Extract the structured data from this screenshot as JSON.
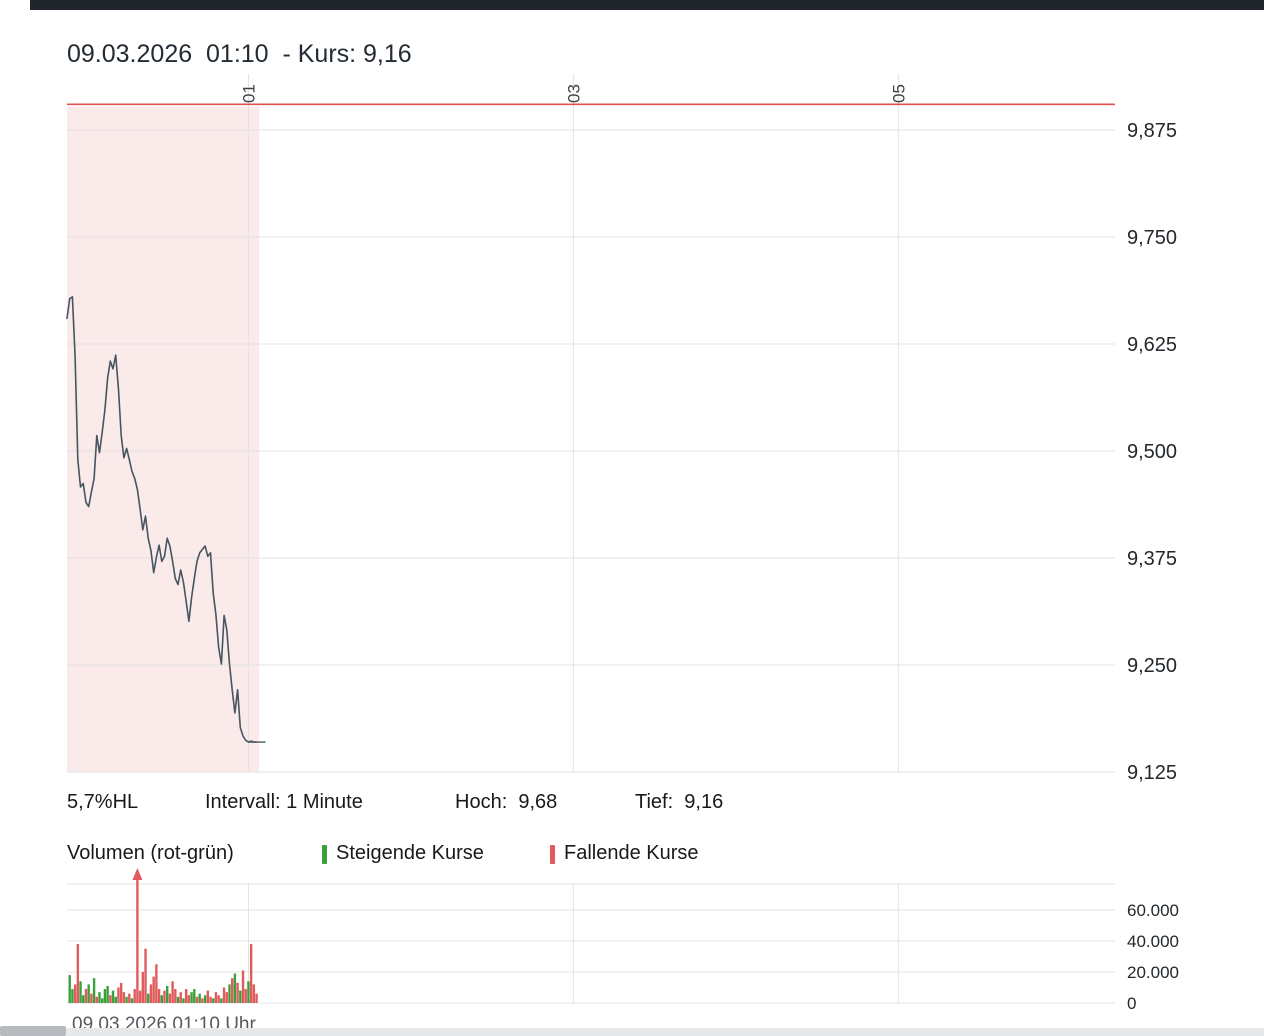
{
  "header": {
    "title": "09.03.2026  01:10  - Kurs: 9,16"
  },
  "stats": {
    "range_pct": "5,7%HL",
    "interval": "Intervall: 1 Minute",
    "high": "Hoch:  9,68",
    "low": "Tief:  9,16"
  },
  "legend": {
    "volume_label": "Volumen (rot-grün)",
    "up_label": "Steigende Kurse",
    "down_label": "Fallende Kurse",
    "up_color": "#3aa03a",
    "down_color": "#e15b5e"
  },
  "footer": {
    "axis_label": "09.03.2026 01:10 Uhr"
  },
  "chart_data": {
    "type": "line",
    "title": "09.03.2026  01:10  - Kurs: 9,16",
    "interval": "1 Minute",
    "high": 9.68,
    "low": 9.16,
    "last": 9.16,
    "y_axis_side": "right",
    "ylim": [
      9.125,
      9.943
    ],
    "grid": true,
    "y_ticks": [
      {
        "label": "9,875",
        "value": 9.875
      },
      {
        "label": "9,750",
        "value": 9.75
      },
      {
        "label": "9,625",
        "value": 9.625
      },
      {
        "label": "9,500",
        "value": 9.5
      },
      {
        "label": "9,375",
        "value": 9.375
      },
      {
        "label": "9,250",
        "value": 9.25
      },
      {
        "label": "9,125",
        "value": 9.125
      }
    ],
    "x_ticks": [
      {
        "label": "01",
        "min": 67
      },
      {
        "label": "03",
        "min": 187
      },
      {
        "label": "05",
        "min": 307
      }
    ],
    "reference_line": {
      "value": 9.905,
      "color": "#e14f4f"
    },
    "shaded_region": {
      "from_min": 0,
      "to_min": 71,
      "color": "rgba(214,80,80,0.12)"
    },
    "price_series": {
      "name": "Kurs",
      "color": "#475560",
      "points": [
        [
          0,
          9.655
        ],
        [
          1,
          9.678
        ],
        [
          2,
          9.68
        ],
        [
          3,
          9.61
        ],
        [
          4,
          9.49
        ],
        [
          5,
          9.458
        ],
        [
          6,
          9.462
        ],
        [
          7,
          9.44
        ],
        [
          8,
          9.435
        ],
        [
          9,
          9.452
        ],
        [
          10,
          9.468
        ],
        [
          11,
          9.518
        ],
        [
          12,
          9.498
        ],
        [
          13,
          9.522
        ],
        [
          14,
          9.548
        ],
        [
          15,
          9.585
        ],
        [
          16,
          9.605
        ],
        [
          17,
          9.596
        ],
        [
          18,
          9.612
        ],
        [
          19,
          9.572
        ],
        [
          20,
          9.518
        ],
        [
          21,
          9.492
        ],
        [
          22,
          9.503
        ],
        [
          23,
          9.49
        ],
        [
          24,
          9.476
        ],
        [
          25,
          9.468
        ],
        [
          26,
          9.455
        ],
        [
          27,
          9.432
        ],
        [
          28,
          9.408
        ],
        [
          29,
          9.424
        ],
        [
          30,
          9.398
        ],
        [
          31,
          9.384
        ],
        [
          32,
          9.358
        ],
        [
          33,
          9.376
        ],
        [
          34,
          9.39
        ],
        [
          35,
          9.371
        ],
        [
          36,
          9.377
        ],
        [
          37,
          9.398
        ],
        [
          38,
          9.389
        ],
        [
          39,
          9.371
        ],
        [
          40,
          9.351
        ],
        [
          41,
          9.344
        ],
        [
          42,
          9.361
        ],
        [
          43,
          9.347
        ],
        [
          44,
          9.324
        ],
        [
          45,
          9.301
        ],
        [
          46,
          9.329
        ],
        [
          47,
          9.351
        ],
        [
          48,
          9.371
        ],
        [
          49,
          9.381
        ],
        [
          50,
          9.385
        ],
        [
          51,
          9.389
        ],
        [
          52,
          9.377
        ],
        [
          53,
          9.381
        ],
        [
          54,
          9.334
        ],
        [
          55,
          9.309
        ],
        [
          56,
          9.271
        ],
        [
          57,
          9.251
        ],
        [
          58,
          9.308
        ],
        [
          59,
          9.291
        ],
        [
          60,
          9.251
        ],
        [
          61,
          9.221
        ],
        [
          62,
          9.194
        ],
        [
          63,
          9.221
        ],
        [
          64,
          9.177
        ],
        [
          65,
          9.167
        ],
        [
          66,
          9.162
        ],
        [
          67,
          9.16
        ],
        [
          68,
          9.161
        ],
        [
          69,
          9.16
        ],
        [
          70,
          9.16
        ]
      ]
    },
    "volume": {
      "ylim": [
        0,
        77000
      ],
      "ticks": [
        {
          "label": "60.000",
          "value": 60000
        },
        {
          "label": "40.000",
          "value": 40000
        },
        {
          "label": "20.000",
          "value": 20000
        },
        {
          "label": "0",
          "value": 0
        }
      ],
      "bars": [
        [
          1,
          18000,
          "g"
        ],
        [
          2,
          9000,
          "g"
        ],
        [
          3,
          12000,
          "r"
        ],
        [
          4,
          38000,
          "r"
        ],
        [
          5,
          14000,
          "g"
        ],
        [
          6,
          5000,
          "g"
        ],
        [
          7,
          9000,
          "r"
        ],
        [
          8,
          12000,
          "g"
        ],
        [
          9,
          6000,
          "r"
        ],
        [
          10,
          16000,
          "g"
        ],
        [
          11,
          4000,
          "r"
        ],
        [
          12,
          7000,
          "g"
        ],
        [
          13,
          3000,
          "g"
        ],
        [
          14,
          9000,
          "g"
        ],
        [
          15,
          11000,
          "g"
        ],
        [
          16,
          5000,
          "r"
        ],
        [
          17,
          8000,
          "g"
        ],
        [
          18,
          4000,
          "g"
        ],
        [
          19,
          10000,
          "r"
        ],
        [
          20,
          13000,
          "r"
        ],
        [
          21,
          7000,
          "r"
        ],
        [
          22,
          4000,
          "g"
        ],
        [
          23,
          6000,
          "r"
        ],
        [
          24,
          3000,
          "g"
        ],
        [
          25,
          9000,
          "r"
        ],
        [
          26,
          95000,
          "r"
        ],
        [
          27,
          8000,
          "r"
        ],
        [
          28,
          20000,
          "r"
        ],
        [
          29,
          35000,
          "r"
        ],
        [
          30,
          6000,
          "g"
        ],
        [
          31,
          12000,
          "r"
        ],
        [
          32,
          17000,
          "r"
        ],
        [
          33,
          25000,
          "r"
        ],
        [
          34,
          9000,
          "r"
        ],
        [
          35,
          5000,
          "g"
        ],
        [
          36,
          8000,
          "r"
        ],
        [
          37,
          11000,
          "g"
        ],
        [
          38,
          6000,
          "r"
        ],
        [
          39,
          14000,
          "r"
        ],
        [
          40,
          9000,
          "r"
        ],
        [
          41,
          4000,
          "g"
        ],
        [
          42,
          7000,
          "r"
        ],
        [
          43,
          3000,
          "g"
        ],
        [
          44,
          9000,
          "r"
        ],
        [
          45,
          5000,
          "r"
        ],
        [
          46,
          7000,
          "g"
        ],
        [
          47,
          9000,
          "g"
        ],
        [
          48,
          4000,
          "r"
        ],
        [
          49,
          6000,
          "g"
        ],
        [
          50,
          3000,
          "r"
        ],
        [
          51,
          5000,
          "g"
        ],
        [
          52,
          8000,
          "r"
        ],
        [
          53,
          4000,
          "r"
        ],
        [
          54,
          3000,
          "g"
        ],
        [
          55,
          7000,
          "r"
        ],
        [
          56,
          5000,
          "r"
        ],
        [
          57,
          3000,
          "g"
        ],
        [
          58,
          10000,
          "r"
        ],
        [
          59,
          7000,
          "r"
        ],
        [
          60,
          12000,
          "g"
        ],
        [
          61,
          16000,
          "r"
        ],
        [
          62,
          19000,
          "g"
        ],
        [
          63,
          13000,
          "r"
        ],
        [
          64,
          8000,
          "g"
        ],
        [
          65,
          21000,
          "r"
        ],
        [
          66,
          9000,
          "r"
        ],
        [
          67,
          14000,
          "g"
        ],
        [
          68,
          38000,
          "r"
        ],
        [
          69,
          12000,
          "r"
        ],
        [
          70,
          6000,
          "r"
        ]
      ]
    }
  }
}
